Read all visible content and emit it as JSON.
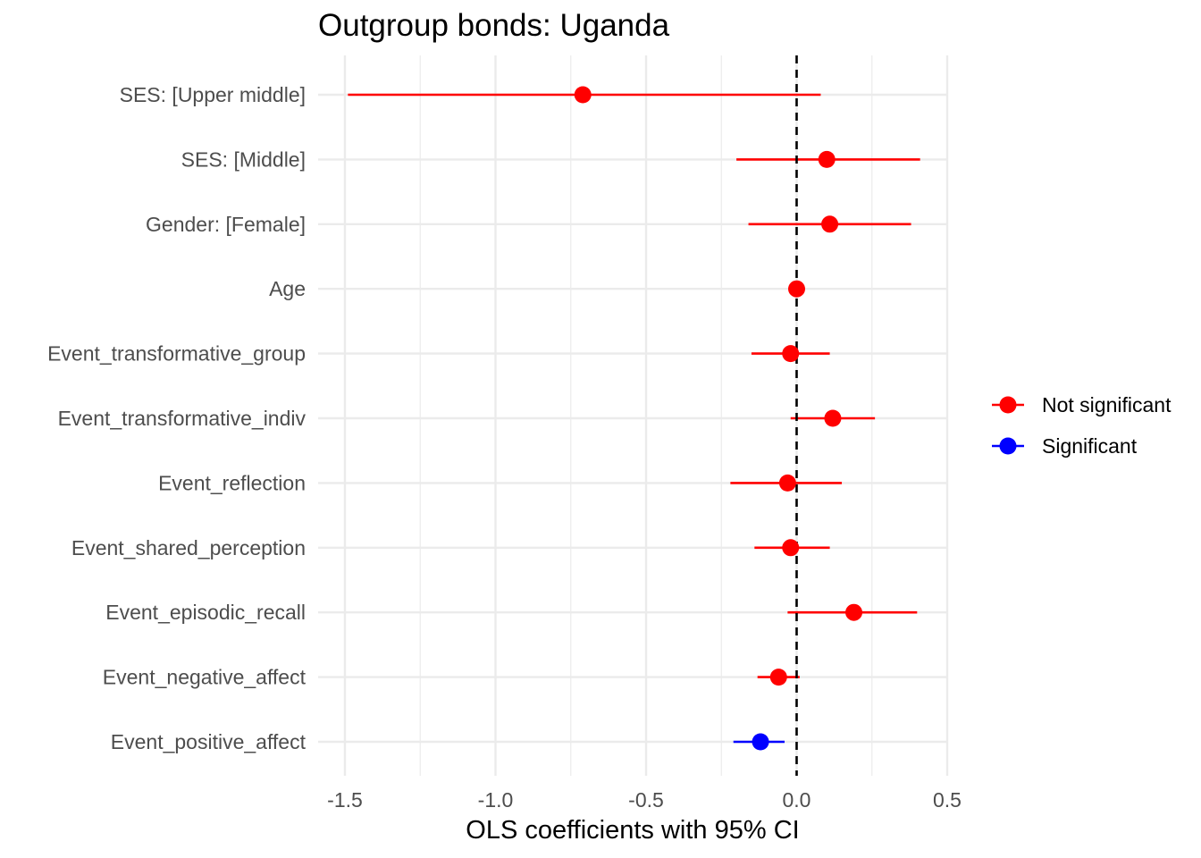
{
  "chart_data": {
    "type": "scatter",
    "subtype": "coefficient-plot",
    "title": "Outgroup bonds: Uganda",
    "xlabel": "OLS coefficients with 95% CI",
    "ylabel": "",
    "xlim": [
      -1.59,
      0.54
    ],
    "x_ticks": [
      -1.5,
      -1.0,
      -0.5,
      0.0,
      0.5
    ],
    "x_tick_labels": [
      "-1.5",
      "-1.0",
      "-0.5",
      "0.0",
      "0.5"
    ],
    "reference_line": 0,
    "grid": true,
    "legend_position": "right",
    "colors": {
      "Not significant": "#ff0000",
      "Significant": "#0000ff"
    },
    "legend": [
      "Not significant",
      "Significant"
    ],
    "terms": [
      {
        "label": "SES:  [Upper middle]",
        "estimate": -0.71,
        "ci_low": -1.49,
        "ci_high": 0.08,
        "group": "Not significant"
      },
      {
        "label": "SES:  [Middle]",
        "estimate": 0.1,
        "ci_low": -0.2,
        "ci_high": 0.41,
        "group": "Not significant"
      },
      {
        "label": "Gender:  [Female]",
        "estimate": 0.11,
        "ci_low": -0.16,
        "ci_high": 0.38,
        "group": "Not significant"
      },
      {
        "label": "Age",
        "estimate": 0.0,
        "ci_low": -0.01,
        "ci_high": 0.01,
        "group": "Not significant"
      },
      {
        "label": "Event_transformative_group",
        "estimate": -0.02,
        "ci_low": -0.15,
        "ci_high": 0.11,
        "group": "Not significant"
      },
      {
        "label": "Event_transformative_indiv",
        "estimate": 0.12,
        "ci_low": -0.02,
        "ci_high": 0.26,
        "group": "Not significant"
      },
      {
        "label": "Event_reflection",
        "estimate": -0.03,
        "ci_low": -0.22,
        "ci_high": 0.15,
        "group": "Not significant"
      },
      {
        "label": "Event_shared_perception",
        "estimate": -0.02,
        "ci_low": -0.14,
        "ci_high": 0.11,
        "group": "Not significant"
      },
      {
        "label": "Event_episodic_recall",
        "estimate": 0.19,
        "ci_low": -0.03,
        "ci_high": 0.4,
        "group": "Not significant"
      },
      {
        "label": "Event_negative_affect",
        "estimate": -0.06,
        "ci_low": -0.13,
        "ci_high": 0.01,
        "group": "Not significant"
      },
      {
        "label": "Event_positive_affect",
        "estimate": -0.12,
        "ci_low": -0.21,
        "ci_high": -0.04,
        "group": "Significant"
      }
    ]
  }
}
